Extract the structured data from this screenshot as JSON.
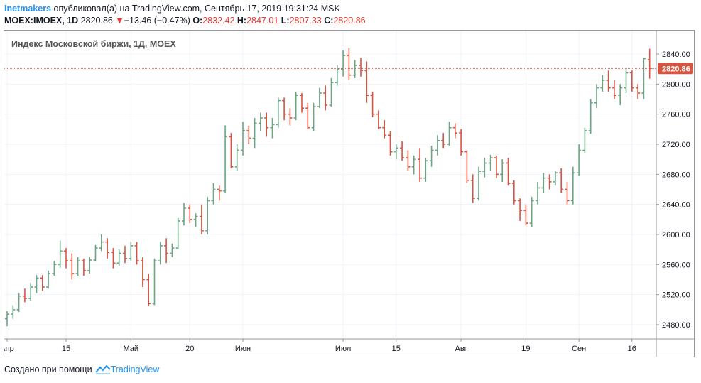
{
  "header": {
    "user": "Inetmakers",
    "published_text": "опубликовал(а) на TradingView.com, Сентябрь 17, 2019 19:31:24 MSK",
    "symbol": "MOEX:IMOEX, 1D",
    "last": "2820.86",
    "change": "−13.46 (−0.47%)",
    "open_label": "O:",
    "open": "2832.42",
    "high_label": "H:",
    "high": "2847.01",
    "low_label": "L:",
    "low": "2807.33",
    "close_label": "C:",
    "close": "2820.86"
  },
  "footer": {
    "created_with": "Создано при помощи",
    "brand": "TradingView"
  },
  "colors": {
    "up": "#6ba583",
    "down": "#d75442",
    "accent": "#2196f3",
    "last_price": "#d75442"
  },
  "chart_data": {
    "type": "ohlc",
    "title": "Индекс Московской биржи, 1Д, MOEX",
    "ylim": [
      2460,
      2870
    ],
    "y_ticks": [
      2480,
      2520,
      2560,
      2600,
      2640,
      2680,
      2720,
      2760,
      2800,
      2840
    ],
    "y_tick_labels": [
      "2480.00",
      "2520.00",
      "2560.00",
      "2600.00",
      "2640.00",
      "2680.00",
      "2720.00",
      "2760.00",
      "2800.00",
      "2840.00"
    ],
    "x_ticks": [
      {
        "label": "Апр",
        "bar": 0
      },
      {
        "label": "15",
        "bar": 10
      },
      {
        "label": "Май",
        "bar": 21
      },
      {
        "label": "20",
        "bar": 31
      },
      {
        "label": "Июн",
        "bar": 40
      },
      {
        "label": "Июл",
        "bar": 57
      },
      {
        "label": "15",
        "bar": 66
      },
      {
        "label": "Авг",
        "bar": 77
      },
      {
        "label": "19",
        "bar": 88
      },
      {
        "label": "Сен",
        "bar": 97
      },
      {
        "label": "16",
        "bar": 106
      }
    ],
    "last_price": 2820.86,
    "last_price_label": "2820.86",
    "grid": true,
    "bars": [
      [
        2488,
        2498,
        2478,
        2494
      ],
      [
        2494,
        2506,
        2488,
        2500
      ],
      [
        2500,
        2522,
        2497,
        2518
      ],
      [
        2518,
        2528,
        2510,
        2515
      ],
      [
        2515,
        2536,
        2512,
        2530
      ],
      [
        2530,
        2546,
        2522,
        2542
      ],
      [
        2542,
        2546,
        2525,
        2530
      ],
      [
        2530,
        2552,
        2528,
        2548
      ],
      [
        2548,
        2565,
        2545,
        2560
      ],
      [
        2560,
        2592,
        2556,
        2578
      ],
      [
        2578,
        2582,
        2555,
        2565
      ],
      [
        2565,
        2575,
        2540,
        2548
      ],
      [
        2548,
        2570,
        2545,
        2565
      ],
      [
        2565,
        2568,
        2545,
        2552
      ],
      [
        2552,
        2570,
        2548,
        2566
      ],
      [
        2566,
        2586,
        2564,
        2582
      ],
      [
        2582,
        2600,
        2578,
        2590
      ],
      [
        2590,
        2595,
        2568,
        2576
      ],
      [
        2576,
        2582,
        2555,
        2562
      ],
      [
        2562,
        2580,
        2558,
        2575
      ],
      [
        2575,
        2585,
        2562,
        2568
      ],
      [
        2568,
        2590,
        2565,
        2585
      ],
      [
        2585,
        2590,
        2560,
        2565
      ],
      [
        2565,
        2570,
        2530,
        2540
      ],
      [
        2540,
        2548,
        2505,
        2508
      ],
      [
        2508,
        2568,
        2506,
        2565
      ],
      [
        2565,
        2590,
        2560,
        2585
      ],
      [
        2585,
        2595,
        2562,
        2575
      ],
      [
        2575,
        2588,
        2570,
        2582
      ],
      [
        2582,
        2622,
        2580,
        2618
      ],
      [
        2618,
        2642,
        2612,
        2635
      ],
      [
        2635,
        2640,
        2615,
        2620
      ],
      [
        2620,
        2628,
        2610,
        2624
      ],
      [
        2624,
        2640,
        2600,
        2605
      ],
      [
        2605,
        2650,
        2600,
        2645
      ],
      [
        2645,
        2668,
        2640,
        2660
      ],
      [
        2660,
        2665,
        2645,
        2658
      ],
      [
        2658,
        2745,
        2655,
        2730
      ],
      [
        2730,
        2735,
        2688,
        2690
      ],
      [
        2690,
        2720,
        2685,
        2712
      ],
      [
        2712,
        2750,
        2705,
        2738
      ],
      [
        2738,
        2745,
        2720,
        2728
      ],
      [
        2728,
        2755,
        2715,
        2748
      ],
      [
        2748,
        2762,
        2738,
        2755
      ],
      [
        2755,
        2762,
        2730,
        2742
      ],
      [
        2742,
        2755,
        2728,
        2746
      ],
      [
        2746,
        2782,
        2742,
        2778
      ],
      [
        2778,
        2782,
        2752,
        2760
      ],
      [
        2760,
        2768,
        2745,
        2755
      ],
      [
        2755,
        2790,
        2752,
        2785
      ],
      [
        2785,
        2788,
        2762,
        2768
      ],
      [
        2768,
        2775,
        2740,
        2742
      ],
      [
        2742,
        2775,
        2738,
        2770
      ],
      [
        2770,
        2795,
        2768,
        2788
      ],
      [
        2788,
        2798,
        2765,
        2772
      ],
      [
        2772,
        2808,
        2770,
        2802
      ],
      [
        2802,
        2825,
        2798,
        2820
      ],
      [
        2820,
        2845,
        2810,
        2838
      ],
      [
        2838,
        2848,
        2805,
        2812
      ],
      [
        2812,
        2832,
        2808,
        2825
      ],
      [
        2825,
        2835,
        2810,
        2818
      ],
      [
        2818,
        2830,
        2775,
        2785
      ],
      [
        2785,
        2790,
        2756,
        2760
      ],
      [
        2760,
        2765,
        2740,
        2742
      ],
      [
        2742,
        2752,
        2728,
        2732
      ],
      [
        2732,
        2738,
        2705,
        2710
      ],
      [
        2710,
        2720,
        2700,
        2715
      ],
      [
        2715,
        2724,
        2698,
        2702
      ],
      [
        2702,
        2712,
        2685,
        2690
      ],
      [
        2690,
        2705,
        2680,
        2700
      ],
      [
        2700,
        2715,
        2670,
        2675
      ],
      [
        2675,
        2702,
        2670,
        2698
      ],
      [
        2698,
        2718,
        2690,
        2712
      ],
      [
        2712,
        2732,
        2705,
        2725
      ],
      [
        2725,
        2735,
        2715,
        2720
      ],
      [
        2720,
        2750,
        2718,
        2742
      ],
      [
        2742,
        2748,
        2728,
        2735
      ],
      [
        2735,
        2740,
        2705,
        2710
      ],
      [
        2710,
        2712,
        2668,
        2672
      ],
      [
        2672,
        2680,
        2642,
        2648
      ],
      [
        2648,
        2690,
        2645,
        2684
      ],
      [
        2684,
        2702,
        2676,
        2695
      ],
      [
        2695,
        2706,
        2685,
        2702
      ],
      [
        2702,
        2705,
        2675,
        2680
      ],
      [
        2680,
        2700,
        2670,
        2695
      ],
      [
        2695,
        2702,
        2665,
        2668
      ],
      [
        2668,
        2672,
        2640,
        2645
      ],
      [
        2645,
        2648,
        2618,
        2632
      ],
      [
        2632,
        2640,
        2612,
        2615
      ],
      [
        2615,
        2650,
        2610,
        2645
      ],
      [
        2645,
        2670,
        2640,
        2662
      ],
      [
        2662,
        2682,
        2655,
        2675
      ],
      [
        2675,
        2680,
        2660,
        2670
      ],
      [
        2670,
        2684,
        2665,
        2682
      ],
      [
        2682,
        2688,
        2655,
        2660
      ],
      [
        2660,
        2670,
        2640,
        2645
      ],
      [
        2645,
        2690,
        2640,
        2682
      ],
      [
        2682,
        2720,
        2678,
        2712
      ],
      [
        2712,
        2742,
        2708,
        2738
      ],
      [
        2738,
        2780,
        2734,
        2775
      ],
      [
        2775,
        2800,
        2768,
        2795
      ],
      [
        2795,
        2812,
        2790,
        2805
      ],
      [
        2805,
        2818,
        2790,
        2795
      ],
      [
        2795,
        2805,
        2780,
        2785
      ],
      [
        2785,
        2800,
        2772,
        2795
      ],
      [
        2795,
        2820,
        2788,
        2815
      ],
      [
        2815,
        2818,
        2790,
        2795
      ],
      [
        2795,
        2800,
        2780,
        2788
      ],
      [
        2788,
        2835,
        2780,
        2834
      ],
      [
        2832.42,
        2847.01,
        2807.33,
        2820.86
      ]
    ]
  }
}
